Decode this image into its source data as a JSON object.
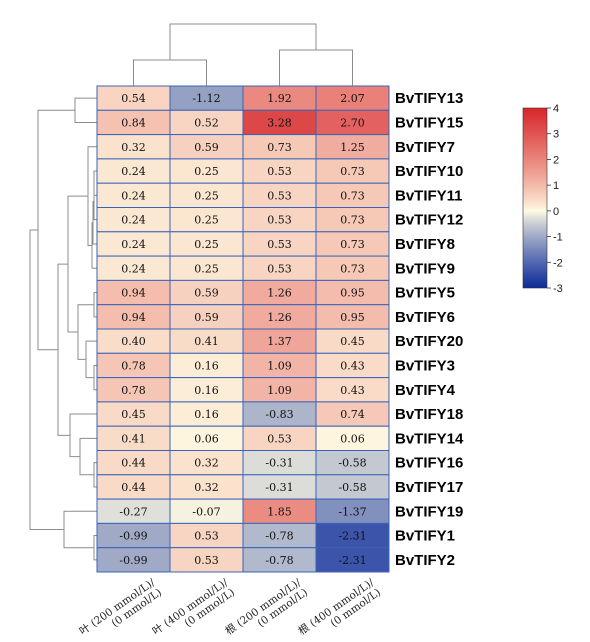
{
  "chart_data": {
    "type": "heatmap",
    "columns": [
      [
        "叶 (200 mmol/L)/",
        "(0 mmol/L)"
      ],
      [
        "叶 (400 mmol/L)/",
        "(0 mmol/L)"
      ],
      [
        "根 (200 mmol/L)/",
        "(0 mmol/L)"
      ],
      [
        "根 (400 mmol/L)/",
        "(0 mmol/L)"
      ]
    ],
    "rows": [
      "BvTIFY13",
      "BvTIFY15",
      "BvTIFY7",
      "BvTIFY10",
      "BvTIFY11",
      "BvTIFY12",
      "BvTIFY8",
      "BvTIFY9",
      "BvTIFY5",
      "BvTIFY6",
      "BvTIFY20",
      "BvTIFY3",
      "BvTIFY4",
      "BvTIFY18",
      "BvTIFY14",
      "BvTIFY16",
      "BvTIFY17",
      "BvTIFY19",
      "BvTIFY1",
      "BvTIFY2"
    ],
    "values": [
      [
        0.54,
        -1.12,
        1.92,
        2.07
      ],
      [
        0.84,
        0.52,
        3.28,
        2.7
      ],
      [
        0.32,
        0.59,
        0.73,
        1.25
      ],
      [
        0.24,
        0.25,
        0.53,
        0.73
      ],
      [
        0.24,
        0.25,
        0.53,
        0.73
      ],
      [
        0.24,
        0.25,
        0.53,
        0.73
      ],
      [
        0.24,
        0.25,
        0.53,
        0.73
      ],
      [
        0.24,
        0.25,
        0.53,
        0.73
      ],
      [
        0.94,
        0.59,
        1.26,
        0.95
      ],
      [
        0.94,
        0.59,
        1.26,
        0.95
      ],
      [
        0.4,
        0.41,
        1.37,
        0.45
      ],
      [
        0.78,
        0.16,
        1.09,
        0.43
      ],
      [
        0.78,
        0.16,
        1.09,
        0.43
      ],
      [
        0.45,
        0.16,
        -0.83,
        0.74
      ],
      [
        0.41,
        0.06,
        0.53,
        0.06
      ],
      [
        0.44,
        0.32,
        -0.31,
        -0.58
      ],
      [
        0.44,
        0.32,
        -0.31,
        -0.58
      ],
      [
        -0.27,
        -0.07,
        1.85,
        -1.37
      ],
      [
        -0.99,
        0.53,
        -0.78,
        -2.31
      ],
      [
        -0.99,
        0.53,
        -0.78,
        -2.31
      ]
    ],
    "color_scale": {
      "min": -3,
      "max": 4,
      "ticks": [
        4,
        3,
        2,
        1,
        0,
        -1,
        -2,
        -3
      ],
      "colors": {
        "low": "#0b2b9a",
        "mid": "#fffbe3",
        "high": "#d8262a"
      }
    },
    "dendrograms": {
      "rows": true,
      "columns": true
    },
    "legend_placement": "right"
  }
}
